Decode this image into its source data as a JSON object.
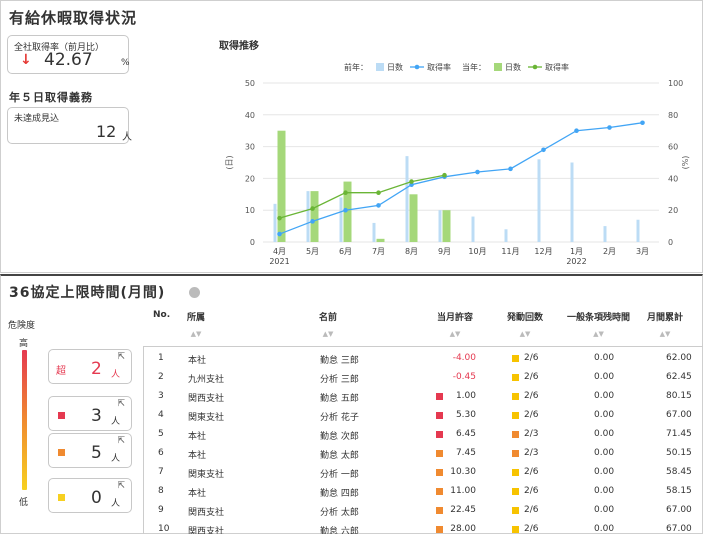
{
  "header": {
    "title": "有給休暇取得状況"
  },
  "rate_card": {
    "label": "全社取得率（前月比）",
    "arrow": "↓",
    "value": "42.67",
    "unit": "%"
  },
  "obligation": {
    "title": "年５日取得義務",
    "label": "未達成見込",
    "value": "12",
    "unit": "人"
  },
  "chart": {
    "title": "取得推移",
    "legend": {
      "prev_label": "前年：",
      "curr_label": "当年：",
      "days": "日数",
      "rate": "取得率"
    }
  },
  "chart_data": {
    "type": "bar",
    "categories": [
      "4月",
      "5月",
      "6月",
      "7月",
      "8月",
      "9月",
      "10月",
      "11月",
      "12月",
      "1月",
      "2月",
      "3月"
    ],
    "x_sublabels": {
      "0": "2021",
      "9": "2022"
    },
    "y_left": {
      "label": "(日)",
      "ylim": [
        0,
        50
      ],
      "ticks": [
        0,
        10,
        20,
        30,
        40,
        50
      ]
    },
    "y_right": {
      "label": "(%)",
      "ylim": [
        0,
        100
      ],
      "ticks": [
        0,
        20,
        40,
        60,
        80,
        100
      ]
    },
    "series": [
      {
        "name": "日数",
        "period": "前年",
        "kind": "bar",
        "axis": "left",
        "color": "#bcdcf5",
        "values": [
          12,
          16,
          14,
          6,
          27,
          10,
          8,
          4,
          26,
          25,
          5,
          7
        ]
      },
      {
        "name": "取得率",
        "period": "前年",
        "kind": "line",
        "axis": "right",
        "color": "#42a5f5",
        "values": [
          5,
          13,
          20,
          23,
          36,
          41,
          44,
          46,
          58,
          70,
          72,
          75
        ]
      },
      {
        "name": "日数",
        "period": "当年",
        "kind": "bar",
        "axis": "left",
        "color": "#a5d87a",
        "values": [
          35,
          16,
          19,
          1,
          15,
          10,
          null,
          null,
          null,
          null,
          null,
          null
        ]
      },
      {
        "name": "取得率",
        "period": "当年",
        "kind": "line",
        "axis": "right",
        "color": "#6ab536",
        "values": [
          15,
          21,
          31,
          31,
          38,
          42,
          null,
          null,
          null,
          null,
          null,
          null
        ]
      }
    ],
    "grid": true,
    "legend_position": "top"
  },
  "limits": {
    "title": "36協定上限時間(月間)",
    "risk_label": "危険度",
    "high": "高",
    "low": "低",
    "cards": [
      {
        "chip": "超",
        "count": "2",
        "unit": "人",
        "color": "#e53950"
      },
      {
        "chip": "",
        "count": "3",
        "unit": "人",
        "color": "#e53950"
      },
      {
        "chip": "",
        "count": "5",
        "unit": "人",
        "color": "#f08a30"
      },
      {
        "chip": "",
        "count": "0",
        "unit": "人",
        "color": "#f7d020"
      }
    ],
    "columns": [
      "No.",
      "所属",
      "名前",
      "当月許容",
      "発動回数",
      "一般条項残時間",
      "月間累計"
    ],
    "rows": [
      {
        "no": "1",
        "dept": "本社",
        "name": "勤怠 三郎",
        "allow": "-4.00",
        "mark": "",
        "count": "2/6",
        "count_color": "#f7c300",
        "remain": "0.00",
        "total": "62.00"
      },
      {
        "no": "2",
        "dept": "九州支社",
        "name": "分析 三郎",
        "allow": "-0.45",
        "mark": "",
        "count": "2/6",
        "count_color": "#f7c300",
        "remain": "0.00",
        "total": "62.45"
      },
      {
        "no": "3",
        "dept": "関西支社",
        "name": "勤怠 五郎",
        "allow": "1.00",
        "mark": "#e53950",
        "count": "2/6",
        "count_color": "#f7c300",
        "remain": "0.00",
        "total": "80.15"
      },
      {
        "no": "4",
        "dept": "関東支社",
        "name": "分析 花子",
        "allow": "5.30",
        "mark": "#e53950",
        "count": "2/6",
        "count_color": "#f7c300",
        "remain": "0.00",
        "total": "67.00"
      },
      {
        "no": "5",
        "dept": "本社",
        "name": "勤怠 次郎",
        "allow": "6.45",
        "mark": "#e53950",
        "count": "2/3",
        "count_color": "#f08a30",
        "remain": "0.00",
        "total": "71.45"
      },
      {
        "no": "6",
        "dept": "本社",
        "name": "勤怠 太郎",
        "allow": "7.45",
        "mark": "#f08a30",
        "count": "2/3",
        "count_color": "#f08a30",
        "remain": "0.00",
        "total": "50.15"
      },
      {
        "no": "7",
        "dept": "関東支社",
        "name": "分析 一郎",
        "allow": "10.30",
        "mark": "#f08a30",
        "count": "2/6",
        "count_color": "#f7c300",
        "remain": "0.00",
        "total": "58.45"
      },
      {
        "no": "8",
        "dept": "本社",
        "name": "勤怠 四郎",
        "allow": "11.00",
        "mark": "#f08a30",
        "count": "2/6",
        "count_color": "#f7c300",
        "remain": "0.00",
        "total": "58.15"
      },
      {
        "no": "9",
        "dept": "関西支社",
        "name": "分析 太郎",
        "allow": "22.45",
        "mark": "#f08a30",
        "count": "2/6",
        "count_color": "#f7c300",
        "remain": "0.00",
        "total": "67.00"
      },
      {
        "no": "10",
        "dept": "関西支社",
        "name": "勤怠 六郎",
        "allow": "28.00",
        "mark": "#f08a30",
        "count": "2/6",
        "count_color": "#f7c300",
        "remain": "0.00",
        "total": "67.00"
      }
    ]
  }
}
